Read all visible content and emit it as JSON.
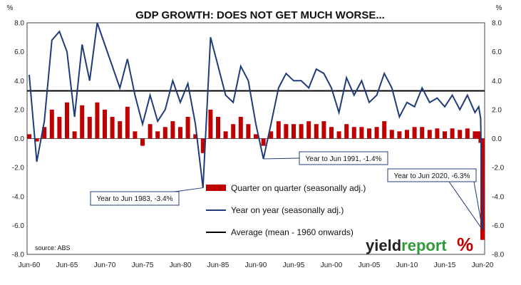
{
  "chart_data": {
    "type": "bar+line",
    "title": "GDP GROWTH: DOES NOT GET MUCH WORSE...",
    "y_unit_left": "%",
    "y_unit_right": "%",
    "ylim": [
      -8,
      8
    ],
    "y_ticks": [
      "8.0",
      "6.0",
      "4.0",
      "2.0",
      "0.0",
      "-2.0",
      "-4.0",
      "-6.0",
      "-8.0"
    ],
    "x_tick_labels": [
      "Jun-60",
      "Jun-65",
      "Jun-70",
      "Jun-75",
      "Jun-80",
      "Jun-85",
      "Jun-90",
      "Jun-95",
      "Jun-00",
      "Jun-05",
      "Jun-10",
      "Jun-15",
      "Jun-20"
    ],
    "legend": {
      "quarterly": "Quarter on quarter (seasonally adj.)",
      "annual": "Year on year (seasonally adj.)",
      "average": "Average (mean - 1960 onwards)"
    },
    "average": 3.3,
    "annual_series": [
      [
        "1960-06",
        4.4
      ],
      [
        "1961-06",
        -1.6
      ],
      [
        "1962-06",
        1.2
      ],
      [
        "1963-06",
        6.8
      ],
      [
        "1964-06",
        7.4
      ],
      [
        "1965-06",
        6.0
      ],
      [
        "1966-06",
        1.5
      ],
      [
        "1967-06",
        6.5
      ],
      [
        "1968-06",
        4.0
      ],
      [
        "1969-06",
        8.0
      ],
      [
        "1970-06",
        6.5
      ],
      [
        "1971-06",
        5.0
      ],
      [
        "1972-06",
        3.5
      ],
      [
        "1973-06",
        5.5
      ],
      [
        "1974-06",
        3.0
      ],
      [
        "1975-06",
        1.0
      ],
      [
        "1976-06",
        3.0
      ],
      [
        "1977-06",
        1.2
      ],
      [
        "1978-06",
        2.0
      ],
      [
        "1979-06",
        4.0
      ],
      [
        "1980-06",
        2.5
      ],
      [
        "1981-06",
        3.8
      ],
      [
        "1982-06",
        1.0
      ],
      [
        "1983-06",
        -3.4
      ],
      [
        "1984-06",
        7.0
      ],
      [
        "1985-06",
        5.0
      ],
      [
        "1986-06",
        3.0
      ],
      [
        "1987-06",
        2.5
      ],
      [
        "1988-06",
        5.0
      ],
      [
        "1989-06",
        4.0
      ],
      [
        "1990-06",
        1.0
      ],
      [
        "1991-06",
        -1.4
      ],
      [
        "1992-06",
        1.0
      ],
      [
        "1993-06",
        3.5
      ],
      [
        "1994-06",
        4.5
      ],
      [
        "1995-06",
        4.0
      ],
      [
        "1996-06",
        4.0
      ],
      [
        "1997-06",
        3.5
      ],
      [
        "1998-06",
        4.8
      ],
      [
        "1999-06",
        4.5
      ],
      [
        "2000-06",
        3.5
      ],
      [
        "2001-06",
        1.8
      ],
      [
        "2002-06",
        4.2
      ],
      [
        "2003-06",
        3.0
      ],
      [
        "2004-06",
        4.0
      ],
      [
        "2005-06",
        2.5
      ],
      [
        "2006-06",
        3.0
      ],
      [
        "2007-06",
        4.5
      ],
      [
        "2008-06",
        3.5
      ],
      [
        "2009-06",
        1.5
      ],
      [
        "2010-06",
        2.5
      ],
      [
        "2011-06",
        2.2
      ],
      [
        "2012-06",
        3.5
      ],
      [
        "2013-06",
        2.5
      ],
      [
        "2014-06",
        2.8
      ],
      [
        "2015-06",
        2.2
      ],
      [
        "2016-06",
        3.0
      ],
      [
        "2017-06",
        2.0
      ],
      [
        "2018-06",
        3.0
      ],
      [
        "2019-06",
        1.8
      ],
      [
        "2019-12",
        2.2
      ],
      [
        "2020-03",
        1.4
      ],
      [
        "2020-06",
        -6.3
      ]
    ],
    "quarterly_series": [
      [
        "1960-06",
        0.3
      ],
      [
        "1961-06",
        -0.2
      ],
      [
        "1962-06",
        0.8
      ],
      [
        "1963-06",
        2.0
      ],
      [
        "1964-06",
        1.5
      ],
      [
        "1965-06",
        2.5
      ],
      [
        "1966-06",
        0.5
      ],
      [
        "1967-06",
        2.3
      ],
      [
        "1968-06",
        1.5
      ],
      [
        "1969-06",
        2.5
      ],
      [
        "1970-06",
        2.0
      ],
      [
        "1971-06",
        1.5
      ],
      [
        "1972-06",
        1.2
      ],
      [
        "1973-06",
        2.2
      ],
      [
        "1974-06",
        0.5
      ],
      [
        "1975-06",
        -0.5
      ],
      [
        "1976-06",
        1.0
      ],
      [
        "1977-06",
        0.5
      ],
      [
        "1978-06",
        0.8
      ],
      [
        "1979-06",
        1.2
      ],
      [
        "1980-06",
        0.8
      ],
      [
        "1981-06",
        1.5
      ],
      [
        "1982-06",
        0.3
      ],
      [
        "1983-06",
        -1.0
      ],
      [
        "1984-06",
        2.0
      ],
      [
        "1985-06",
        1.5
      ],
      [
        "1986-06",
        0.5
      ],
      [
        "1987-06",
        1.0
      ],
      [
        "1988-06",
        1.5
      ],
      [
        "1989-06",
        1.0
      ],
      [
        "1990-06",
        0.3
      ],
      [
        "1991-06",
        -0.5
      ],
      [
        "1992-06",
        0.5
      ],
      [
        "1993-06",
        1.2
      ],
      [
        "1994-06",
        1.0
      ],
      [
        "1995-06",
        1.0
      ],
      [
        "1996-06",
        1.0
      ],
      [
        "1997-06",
        1.2
      ],
      [
        "1998-06",
        1.0
      ],
      [
        "1999-06",
        1.2
      ],
      [
        "2000-06",
        0.8
      ],
      [
        "2001-06",
        0.5
      ],
      [
        "2002-06",
        1.0
      ],
      [
        "2003-06",
        0.8
      ],
      [
        "2004-06",
        0.8
      ],
      [
        "2005-06",
        0.7
      ],
      [
        "2006-06",
        0.8
      ],
      [
        "2007-06",
        1.2
      ],
      [
        "2008-06",
        0.6
      ],
      [
        "2009-06",
        0.5
      ],
      [
        "2010-06",
        0.6
      ],
      [
        "2011-06",
        0.8
      ],
      [
        "2012-06",
        0.8
      ],
      [
        "2013-06",
        0.6
      ],
      [
        "2014-06",
        0.7
      ],
      [
        "2015-06",
        0.5
      ],
      [
        "2016-06",
        0.7
      ],
      [
        "2017-06",
        0.6
      ],
      [
        "2018-06",
        0.7
      ],
      [
        "2019-06",
        0.5
      ],
      [
        "2019-12",
        0.5
      ],
      [
        "2020-03",
        -0.3
      ],
      [
        "2020-06",
        -7.0
      ]
    ],
    "callouts": [
      {
        "text": "Year to Jun 1983, -3.4%",
        "date": "1983-06",
        "value": -3.4
      },
      {
        "text": "Year to Jun 1991, -1.4%",
        "date": "1991-06",
        "value": -1.4
      },
      {
        "text": "Year to Jun 2020, -6.3%",
        "date": "2020-06",
        "value": -6.3
      }
    ],
    "source": "source: ABS",
    "colors": {
      "bars": "#c00000",
      "line": "#1f3c7a",
      "average": "#000000"
    }
  },
  "logo": {
    "word_a": "yield",
    "word_b": "report",
    "mark": "%"
  }
}
